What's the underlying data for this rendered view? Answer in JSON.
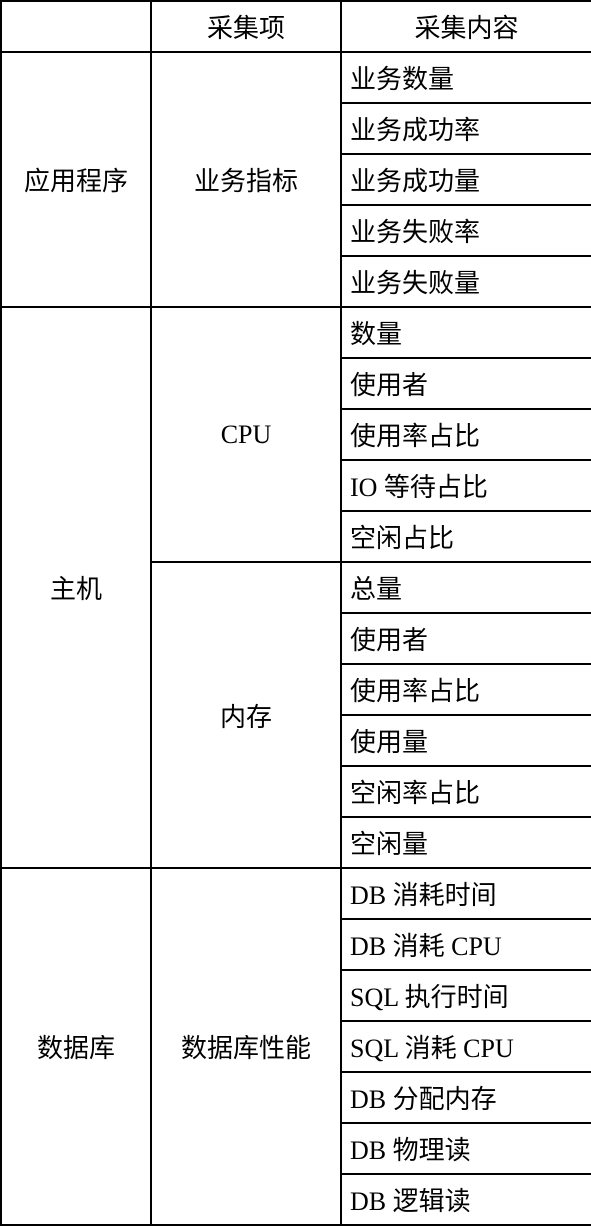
{
  "header": {
    "col1": "",
    "col2": "采集项",
    "col3": "采集内容"
  },
  "sections": [
    {
      "category": "应用程序",
      "sub": "业务指标",
      "items": [
        "业务数量",
        "业务成功率",
        "业务成功量",
        "业务失败率",
        "业务失败量"
      ]
    },
    {
      "category": "主机",
      "subs": [
        {
          "name": "CPU",
          "items": [
            "数量",
            "使用者",
            "使用率占比",
            "IO 等待占比",
            "空闲占比"
          ]
        },
        {
          "name": "内存",
          "items": [
            "总量",
            "使用者",
            "使用率占比",
            "使用量",
            "空闲率占比",
            "空闲量"
          ]
        }
      ]
    },
    {
      "category": "数据库",
      "sub": "数据库性能",
      "items": [
        "DB 消耗时间",
        "DB 消耗 CPU",
        "SQL 执行时间",
        "SQL 消耗 CPU",
        "DB 分配内存",
        "DB 物理读",
        "DB 逻辑读"
      ]
    }
  ],
  "style": {
    "border_color": "#000000",
    "background_color": "#ffffff",
    "text_color": "#000000",
    "font_size": 26,
    "border_width": 2
  }
}
